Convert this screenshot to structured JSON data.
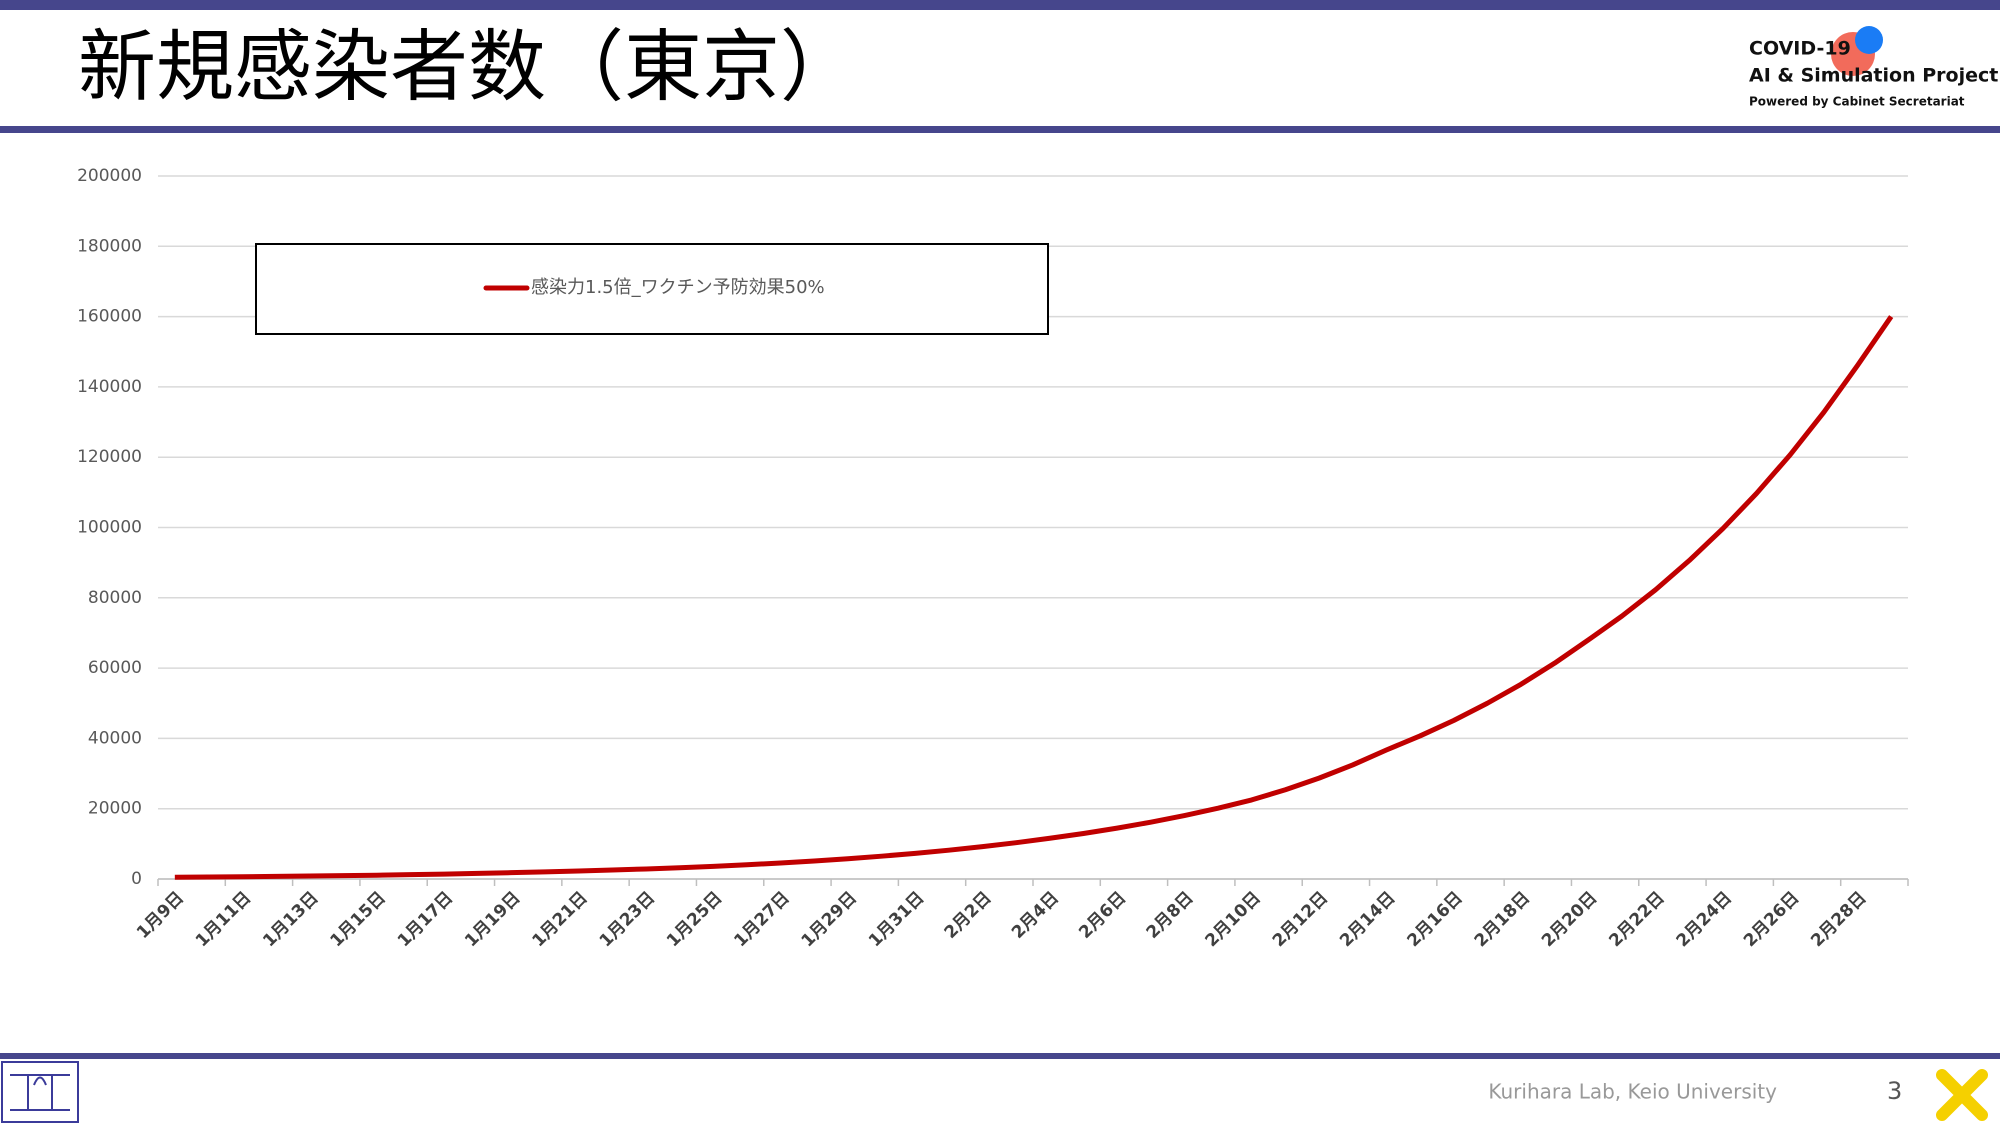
{
  "header": {
    "title": "新規感染者数（東京）",
    "logo": [
      "COVID-19",
      "AI & Simulation Project",
      "Powered by Cabinet Secretariat"
    ]
  },
  "chart_data": {
    "type": "line",
    "categories": [
      "1月9日",
      null,
      "1月11日",
      null,
      "1月13日",
      null,
      "1月15日",
      null,
      "1月17日",
      null,
      "1月19日",
      null,
      "1月21日",
      null,
      "1月23日",
      null,
      "1月25日",
      null,
      "1月27日",
      null,
      "1月29日",
      null,
      "1月31日",
      null,
      "2月2日",
      null,
      "2月4日",
      null,
      "2月6日",
      null,
      "2月8日",
      null,
      "2月10日",
      null,
      "2月12日",
      null,
      "2月14日",
      null,
      "2月16日",
      null,
      "2月18日",
      null,
      "2月20日",
      null,
      "2月22日",
      null,
      "2月24日",
      null,
      "2月26日",
      null,
      "2月28日",
      null
    ],
    "series": [
      {
        "name": "感染力1.5倍_ワクチン予防効果50%",
        "color": "#c00000",
        "values": [
          500,
          570,
          650,
          740,
          840,
          950,
          1080,
          1230,
          1400,
          1590,
          1800,
          2020,
          2270,
          2550,
          2860,
          3210,
          3600,
          4050,
          4560,
          5130,
          5770,
          6490,
          7300,
          8200,
          9200,
          10330,
          11600,
          12950,
          14470,
          16160,
          18050,
          20150,
          22500,
          25400,
          28700,
          32450,
          36700,
          40700,
          45100,
          50000,
          55400,
          61400,
          68000,
          74800,
          82300,
          90600,
          99700,
          109700,
          120700,
          132800,
          146100,
          160000
        ]
      }
    ],
    "ylim": [
      0,
      200000
    ],
    "yticks": [
      0,
      20000,
      40000,
      60000,
      80000,
      100000,
      120000,
      140000,
      160000,
      180000,
      200000
    ],
    "grid": true
  },
  "footer": {
    "credit": "Kurihara Lab, Keio University",
    "page": "3"
  }
}
